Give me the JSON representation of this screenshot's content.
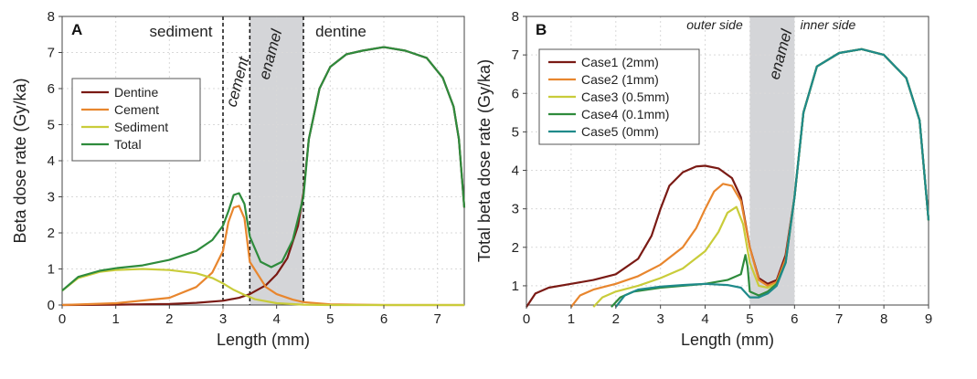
{
  "colors": {
    "dentine": "#7a1a14",
    "cement": "#e8862e",
    "sediment": "#c9cc3a",
    "total": "#2e8b3c",
    "case1": "#7a1a14",
    "case2": "#e8862e",
    "case3": "#c9cc3a",
    "case4": "#2e8b3c",
    "case5": "#1f8a8a",
    "enamel_band": "#d4d5d8",
    "grid": "#d9d9d9"
  },
  "chart_data": [
    {
      "type": "line",
      "panel_label": "A",
      "xlabel": "Length (mm)",
      "ylabel": "Beta dose rate (Gy/ka)",
      "xlim": [
        0,
        7.5
      ],
      "ylim": [
        0,
        8
      ],
      "xticks": [
        "0",
        "1",
        "2",
        "3",
        "4",
        "5",
        "6",
        "7"
      ],
      "yticks": [
        "0",
        "1",
        "2",
        "3",
        "4",
        "5",
        "6",
        "7",
        "8"
      ],
      "grid": "dotted",
      "legend_position": "upper-left",
      "regions": [
        {
          "label": "sediment",
          "style": "normal"
        },
        {
          "label": "cement",
          "style": "italic-rotated"
        },
        {
          "label": "enamel",
          "style": "italic-rotated"
        },
        {
          "label": "dentine",
          "style": "normal"
        }
      ],
      "dashed_boundaries": [
        3.0,
        3.5,
        4.5
      ],
      "shaded_band": [
        3.5,
        4.5
      ],
      "series": [
        {
          "name": "Dentine",
          "x": [
            0,
            1,
            2,
            2.5,
            3.0,
            3.3,
            3.5,
            3.8,
            4.0,
            4.2,
            4.4,
            4.5,
            4.6,
            4.8,
            5.0,
            5.3,
            5.6,
            6.0,
            6.4,
            6.8,
            7.1,
            7.3,
            7.4,
            7.5
          ],
          "y": [
            0,
            0.01,
            0.03,
            0.06,
            0.12,
            0.2,
            0.3,
            0.55,
            0.85,
            1.3,
            2.2,
            3.1,
            4.6,
            6.0,
            6.6,
            6.95,
            7.05,
            7.15,
            7.05,
            6.85,
            6.3,
            5.5,
            4.6,
            2.7
          ]
        },
        {
          "name": "Cement",
          "x": [
            0,
            1,
            2,
            2.5,
            2.8,
            3.0,
            3.1,
            3.2,
            3.3,
            3.4,
            3.5,
            3.8,
            4.0,
            4.3,
            4.5,
            5.0,
            6.0,
            7.5
          ],
          "y": [
            0,
            0.05,
            0.2,
            0.5,
            0.9,
            1.5,
            2.3,
            2.7,
            2.75,
            2.4,
            1.2,
            0.5,
            0.3,
            0.15,
            0.08,
            0.02,
            0.0,
            0.0
          ]
        },
        {
          "name": "Sediment",
          "x": [
            0,
            0.3,
            0.7,
            1.0,
            1.5,
            2.0,
            2.5,
            2.8,
            3.0,
            3.2,
            3.4,
            3.6,
            4.0,
            4.5,
            5.0,
            7.5
          ],
          "y": [
            0.4,
            0.75,
            0.92,
            0.97,
            1.0,
            0.97,
            0.88,
            0.75,
            0.6,
            0.42,
            0.28,
            0.16,
            0.05,
            0.01,
            0.0,
            0.0
          ]
        },
        {
          "name": "Total",
          "x": [
            0,
            0.3,
            0.7,
            1.0,
            1.5,
            2.0,
            2.5,
            2.8,
            3.0,
            3.1,
            3.2,
            3.3,
            3.4,
            3.5,
            3.7,
            3.9,
            4.1,
            4.3,
            4.5,
            4.6,
            4.8,
            5.0,
            5.3,
            5.6,
            6.0,
            6.4,
            6.8,
            7.1,
            7.3,
            7.4,
            7.5
          ],
          "y": [
            0.4,
            0.78,
            0.95,
            1.02,
            1.1,
            1.25,
            1.5,
            1.8,
            2.2,
            2.6,
            3.05,
            3.1,
            2.8,
            1.9,
            1.2,
            1.05,
            1.2,
            1.8,
            3.0,
            4.6,
            6.0,
            6.6,
            6.95,
            7.05,
            7.15,
            7.05,
            6.85,
            6.3,
            5.5,
            4.6,
            2.7
          ]
        }
      ]
    },
    {
      "type": "line",
      "panel_label": "B",
      "xlabel": "Length (mm)",
      "ylabel": "Total beta dose rate (Gy/ka)",
      "xlim": [
        0,
        9
      ],
      "ylim": [
        0.5,
        8
      ],
      "xticks": [
        "0",
        "1",
        "2",
        "3",
        "4",
        "5",
        "6",
        "7",
        "8",
        "9"
      ],
      "yticks": [
        "1",
        "2",
        "3",
        "4",
        "5",
        "6",
        "7",
        "8"
      ],
      "grid": "dotted",
      "legend_position": "upper-left",
      "regions": [
        {
          "label": "outer side",
          "style": "italic"
        },
        {
          "label": "enamel",
          "style": "italic-rotated"
        },
        {
          "label": "inner side",
          "style": "italic"
        }
      ],
      "shaded_band": [
        5,
        6
      ],
      "series": [
        {
          "name": "Case1 (2mm)",
          "x": [
            0,
            0.2,
            0.5,
            1.0,
            1.5,
            2.0,
            2.5,
            2.8,
            3.0,
            3.2,
            3.5,
            3.8,
            4.0,
            4.3,
            4.6,
            4.8,
            5.0,
            5.2,
            5.4,
            5.6,
            5.8,
            6.0,
            6.2,
            6.5,
            7.0,
            7.5,
            8.0,
            8.5,
            8.8,
            9.0
          ],
          "y": [
            0.45,
            0.8,
            0.95,
            1.05,
            1.15,
            1.3,
            1.7,
            2.3,
            3.0,
            3.6,
            3.95,
            4.1,
            4.12,
            4.05,
            3.8,
            3.3,
            2.0,
            1.2,
            1.05,
            1.15,
            1.8,
            3.3,
            5.5,
            6.7,
            7.05,
            7.15,
            7.0,
            6.4,
            5.3,
            2.7
          ]
        },
        {
          "name": "Case2 (1mm)",
          "x": [
            1.0,
            1.2,
            1.5,
            2.0,
            2.5,
            3.0,
            3.5,
            3.8,
            4.0,
            4.2,
            4.4,
            4.6,
            4.8,
            5.0,
            5.2,
            5.4,
            5.6,
            5.8,
            6.0,
            6.2,
            6.5,
            7.0,
            7.5,
            8.0,
            8.5,
            8.8,
            9.0
          ],
          "y": [
            0.45,
            0.75,
            0.9,
            1.05,
            1.25,
            1.55,
            2.0,
            2.5,
            3.0,
            3.45,
            3.65,
            3.6,
            3.2,
            2.0,
            1.15,
            1.0,
            1.1,
            1.7,
            3.3,
            5.5,
            6.7,
            7.05,
            7.15,
            7.0,
            6.4,
            5.3,
            2.7
          ]
        },
        {
          "name": "Case3 (0.5mm)",
          "x": [
            1.5,
            1.7,
            2.0,
            2.5,
            3.0,
            3.5,
            4.0,
            4.3,
            4.5,
            4.7,
            4.85,
            5.0,
            5.2,
            5.4,
            5.6,
            5.8,
            6.0,
            6.2,
            6.5,
            7.0,
            7.5,
            8.0,
            8.5,
            8.8,
            9.0
          ],
          "y": [
            0.45,
            0.7,
            0.85,
            1.0,
            1.2,
            1.45,
            1.9,
            2.4,
            2.9,
            3.05,
            2.6,
            1.6,
            1.0,
            0.95,
            1.05,
            1.6,
            3.3,
            5.5,
            6.7,
            7.05,
            7.15,
            7.0,
            6.4,
            5.3,
            2.7
          ]
        },
        {
          "name": "Case4 (0.1mm)",
          "x": [
            1.9,
            2.1,
            2.4,
            3.0,
            3.5,
            4.0,
            4.5,
            4.8,
            4.9,
            4.95,
            5.0,
            5.2,
            5.4,
            5.6,
            5.8,
            6.0,
            6.2,
            6.5,
            7.0,
            7.5,
            8.0,
            8.5,
            8.8,
            9.0
          ],
          "y": [
            0.45,
            0.7,
            0.85,
            0.95,
            1.0,
            1.05,
            1.15,
            1.3,
            1.8,
            1.5,
            0.85,
            0.75,
            0.85,
            1.05,
            1.6,
            3.3,
            5.5,
            6.7,
            7.05,
            7.15,
            7.0,
            6.4,
            5.3,
            2.7
          ]
        },
        {
          "name": "Case5 (0mm)",
          "x": [
            2.0,
            2.2,
            2.5,
            3.0,
            3.5,
            4.0,
            4.5,
            4.8,
            5.0,
            5.2,
            5.4,
            5.6,
            5.8,
            6.0,
            6.2,
            6.5,
            7.0,
            7.5,
            8.0,
            8.5,
            8.8,
            9.0
          ],
          "y": [
            0.45,
            0.75,
            0.9,
            0.98,
            1.02,
            1.05,
            1.02,
            0.95,
            0.7,
            0.7,
            0.8,
            1.0,
            1.6,
            3.3,
            5.5,
            6.7,
            7.05,
            7.15,
            7.0,
            6.4,
            5.3,
            2.7
          ]
        }
      ]
    }
  ]
}
